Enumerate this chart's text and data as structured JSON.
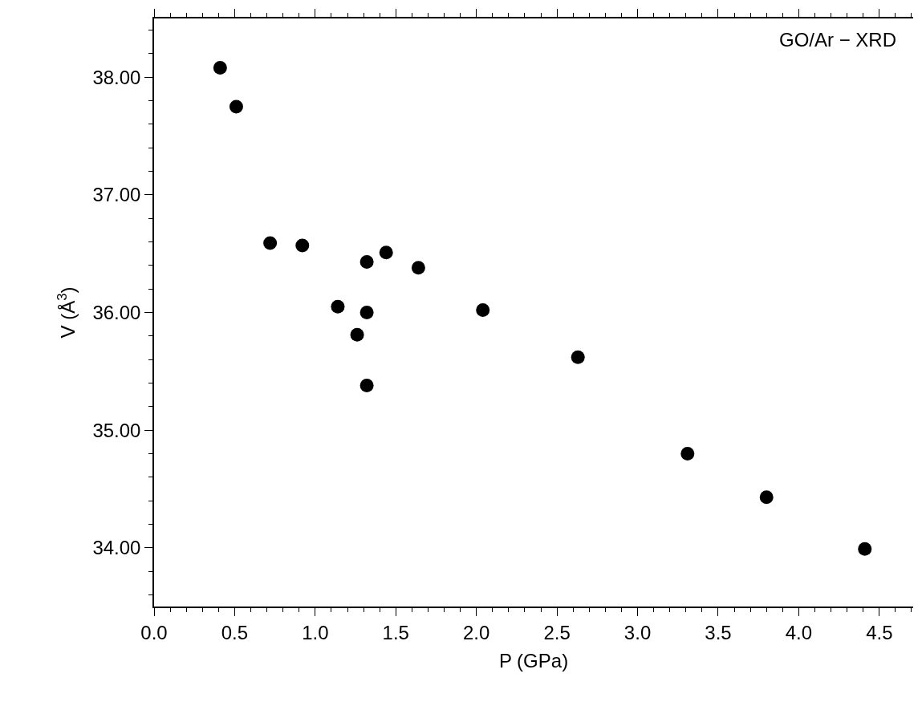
{
  "chart_data": {
    "type": "scatter",
    "xlabel": "P (GPa)",
    "ylabel": "V (Å$^{3}$)",
    "annotations": [
      "GO/Ar − XRD"
    ],
    "x": [
      0.41,
      0.51,
      0.72,
      0.92,
      1.32,
      1.44,
      1.64,
      1.14,
      1.32,
      1.26,
      1.32,
      2.04,
      2.63,
      3.31,
      3.8,
      4.41
    ],
    "series": [
      {
        "color": "#000000",
        "values": [
          38.08,
          37.75,
          36.59,
          36.57,
          36.43,
          36.51,
          36.38,
          36.05,
          36.0,
          35.81,
          35.38,
          36.02,
          35.62,
          34.8,
          34.43,
          33.99
        ]
      }
    ],
    "xlim": [
      0,
      4.71
    ],
    "xticks": [
      {
        "value": 0,
        "label": "0.0"
      },
      0.5,
      {
        "value": 1,
        "label": "1.0"
      },
      1.5,
      {
        "value": 2,
        "label": "2.0"
      },
      2.5,
      {
        "value": 3,
        "label": "3.0"
      },
      3.5,
      {
        "value": 4,
        "label": "4.0"
      },
      4.5
    ],
    "ylim": [
      33.5,
      38.5
    ],
    "yticks": [
      {
        "value": 34,
        "label": "34.00"
      },
      {
        "value": 35,
        "label": "35.00"
      },
      {
        "value": 36,
        "label": "36.00"
      },
      {
        "value": 37,
        "label": "37.00"
      },
      {
        "value": 38,
        "label": "38.00"
      }
    ],
    "marker": "circle"
  }
}
